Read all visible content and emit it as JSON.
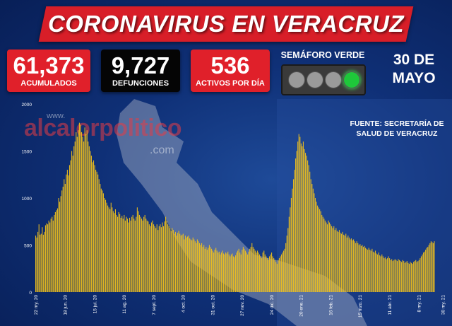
{
  "header": {
    "title": "CORONAVIRUS EN VERACRUZ"
  },
  "stats": [
    {
      "value": "61,373",
      "label": "ACUMULADOS",
      "color": "#e0202a"
    },
    {
      "value": "9,727",
      "label": "DEFUNCIONES",
      "color": "#050505"
    },
    {
      "value": "536",
      "label": "ACTIVOS POR DÍA",
      "color": "#e0202a"
    }
  ],
  "semaforo": {
    "label": "SEMÁFORO VERDE",
    "active_light": "green"
  },
  "date": {
    "line1": "30 DE",
    "line2": "MAYO"
  },
  "source": {
    "line1": "FUENTE: SECRETARÍA DE",
    "line2": "SALUD DE VERACRUZ"
  },
  "watermark": {
    "prefix": "www.",
    "name": "alcalorpolitico",
    "suffix": ".com"
  },
  "chart_data": {
    "type": "bar",
    "title": "",
    "xlabel": "",
    "ylabel": "",
    "ylim": [
      0,
      2000
    ],
    "yticks": [
      0,
      500,
      1000,
      1500,
      2000
    ],
    "bar_color": "#f3c21a",
    "x_tick_labels": [
      "22 my. 20",
      "18 jun. 20",
      "15 jul. 20",
      "11 ag. 20",
      "7 sept. 20",
      "4 oct. 20",
      "31 oct. 20",
      "27 nov. 20",
      "24 dic. 20",
      "20 ene. 21",
      "16 feb. 21",
      "15 mzo. 21",
      "11 abr. 21",
      "8 my. 21",
      "30 my. 21"
    ],
    "x_tick_index": [
      0,
      27,
      54,
      81,
      108,
      135,
      162,
      189,
      216,
      243,
      270,
      297,
      324,
      351,
      373
    ],
    "values": [
      600,
      580,
      640,
      720,
      610,
      620,
      690,
      610,
      640,
      710,
      730,
      720,
      760,
      740,
      780,
      800,
      760,
      820,
      850,
      870,
      890,
      1000,
      960,
      1020,
      1080,
      1120,
      1200,
      1150,
      1250,
      1300,
      1240,
      1350,
      1400,
      1500,
      1450,
      1550,
      1600,
      1700,
      1650,
      1720,
      1800,
      1780,
      1700,
      1650,
      1600,
      1750,
      1680,
      1720,
      1600,
      1550,
      1500,
      1450,
      1380,
      1400,
      1350,
      1300,
      1280,
      1250,
      1200,
      1150,
      1100,
      1080,
      1050,
      1000,
      980,
      950,
      920,
      900,
      880,
      950,
      900,
      860,
      840,
      880,
      820,
      800,
      850,
      830,
      790,
      810,
      780,
      820,
      760,
      800,
      780,
      740,
      790,
      760,
      800,
      820,
      780,
      760,
      800,
      900,
      860,
      820,
      800,
      780,
      760,
      800,
      820,
      780,
      760,
      750,
      720,
      700,
      740,
      760,
      720,
      700,
      680,
      720,
      660,
      700,
      720,
      690,
      740,
      700,
      750,
      800,
      760,
      720,
      700,
      680,
      650,
      680,
      660,
      620,
      640,
      600,
      630,
      650,
      620,
      600,
      610,
      620,
      560,
      600,
      580,
      590,
      600,
      570,
      560,
      550,
      580,
      560,
      540,
      520,
      560,
      540,
      520,
      500,
      520,
      480,
      500,
      460,
      480,
      450,
      470,
      500,
      480,
      460,
      440,
      420,
      450,
      470,
      440,
      420,
      430,
      400,
      420,
      440,
      410,
      400,
      420,
      410,
      430,
      400,
      380,
      400,
      410,
      380,
      370,
      390,
      420,
      440,
      460,
      420,
      400,
      450,
      480,
      460,
      440,
      420,
      400,
      430,
      460,
      480,
      520,
      480,
      460,
      440,
      420,
      440,
      420,
      400,
      380,
      360,
      420,
      440,
      400,
      380,
      360,
      340,
      380,
      400,
      420,
      380,
      360,
      340,
      320,
      300,
      340,
      360,
      380,
      400,
      420,
      440,
      460,
      520,
      600,
      680,
      800,
      900,
      1000,
      1100,
      1200,
      1300,
      1420,
      1500,
      1600,
      1680,
      1650,
      1580,
      1550,
      1600,
      1520,
      1480,
      1450,
      1400,
      1350,
      1280,
      1200,
      1150,
      1100,
      1050,
      1000,
      960,
      920,
      900,
      880,
      860,
      820,
      800,
      780,
      760,
      740,
      720,
      760,
      740,
      720,
      700,
      680,
      700,
      660,
      680,
      650,
      640,
      660,
      630,
      620,
      640,
      610,
      600,
      620,
      580,
      600,
      580,
      560,
      570,
      550,
      560,
      540,
      520,
      540,
      520,
      500,
      510,
      490,
      500,
      480,
      490,
      470,
      460,
      450,
      470,
      450,
      440,
      460,
      430,
      420,
      440,
      410,
      400,
      420,
      390,
      380,
      400,
      380,
      360,
      370,
      350,
      360,
      380,
      360,
      340,
      350,
      330,
      340,
      350,
      340,
      330,
      350,
      340,
      330,
      320,
      340,
      330,
      310,
      320,
      330,
      310,
      300,
      320,
      310,
      300,
      320,
      330,
      340,
      320,
      330,
      340,
      360,
      380,
      400,
      420,
      430,
      450,
      470,
      480,
      500,
      520,
      540,
      530,
      520,
      540
    ]
  }
}
